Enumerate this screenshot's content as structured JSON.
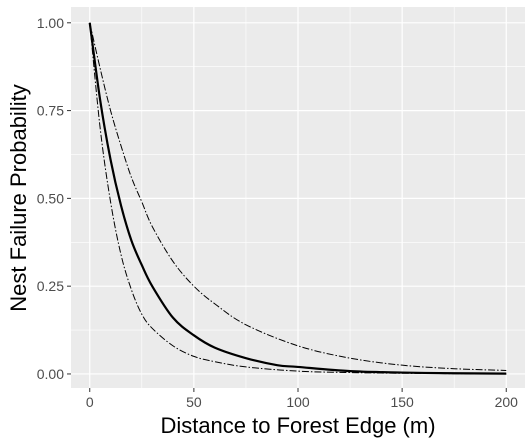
{
  "chart_data": {
    "type": "line",
    "title": "",
    "xlabel": "Distance to Forest Edge (m)",
    "ylabel": "Nest Failure Probability",
    "xlim": [
      -9,
      209
    ],
    "ylim": [
      -0.04,
      1.045
    ],
    "x_ticks": [
      {
        "value": 0,
        "label": "0"
      },
      {
        "value": 50,
        "label": "50"
      },
      {
        "value": 100,
        "label": "100"
      },
      {
        "value": 150,
        "label": "150"
      },
      {
        "value": 200,
        "label": "200"
      }
    ],
    "y_ticks": [
      {
        "value": 0,
        "label": "0.00"
      },
      {
        "value": 0.25,
        "label": "0.25"
      },
      {
        "value": 0.5,
        "label": "0.50"
      },
      {
        "value": 0.75,
        "label": "0.75"
      },
      {
        "value": 1,
        "label": "1.00"
      }
    ],
    "grid": true,
    "legend": "none",
    "series": [
      {
        "style": "solid",
        "x": [
          0,
          5,
          10,
          15,
          20,
          25,
          30,
          40,
          50,
          60,
          75,
          90,
          100,
          125,
          150,
          175,
          200
        ],
        "y": [
          1.0,
          0.78,
          0.61,
          0.48,
          0.38,
          0.31,
          0.25,
          0.16,
          0.11,
          0.075,
          0.045,
          0.025,
          0.02,
          0.008,
          0.004,
          0.002,
          0.001
        ]
      },
      {
        "style": "dashed",
        "x": [
          0,
          5,
          10,
          15,
          20,
          25,
          30,
          40,
          50,
          60,
          75,
          100,
          125,
          150,
          175,
          200
        ],
        "y": [
          1.0,
          0.87,
          0.75,
          0.65,
          0.56,
          0.49,
          0.42,
          0.32,
          0.25,
          0.2,
          0.14,
          0.08,
          0.045,
          0.025,
          0.015,
          0.01
        ]
      },
      {
        "style": "dashed",
        "x": [
          0,
          5,
          10,
          15,
          20,
          25,
          30,
          40,
          50,
          60,
          75,
          100,
          125,
          150,
          200
        ],
        "y": [
          1.0,
          0.7,
          0.49,
          0.34,
          0.24,
          0.17,
          0.13,
          0.08,
          0.05,
          0.035,
          0.02,
          0.008,
          0.004,
          0.002,
          0.0
        ]
      }
    ]
  }
}
